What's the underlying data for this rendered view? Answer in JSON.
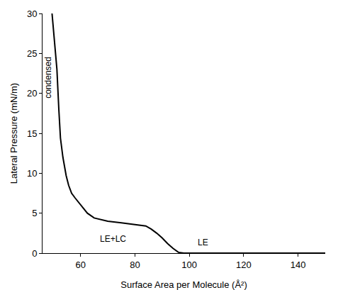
{
  "chart_data": {
    "type": "line",
    "x_label": "Surface Area per Molecule (Å²)",
    "y_label": "Lateral Pressure (mN/m)",
    "x": [
      49.5,
      50.2,
      51.3,
      52.0,
      52.6,
      53.5,
      54.7,
      55.6,
      56.7,
      58.0,
      59.5,
      61.0,
      62.5,
      65.0,
      70.0,
      75.0,
      80.0,
      84.0,
      86.0,
      88.0,
      90.0,
      92.0,
      94.0,
      96.0,
      98.0,
      100.0,
      120.0,
      150.0
    ],
    "values": [
      30.0,
      27.0,
      23.0,
      18.0,
      14.4,
      12.0,
      9.7,
      8.5,
      7.5,
      6.9,
      6.3,
      5.6,
      5.0,
      4.4,
      4.0,
      3.8,
      3.6,
      3.4,
      3.0,
      2.5,
      1.9,
      1.2,
      0.6,
      0.1,
      0.0,
      0.0,
      0.0,
      0.0
    ],
    "color": "#000000",
    "xlim": [
      46,
      150
    ],
    "ylim": [
      0,
      30
    ],
    "xticks": [
      60,
      80,
      100,
      120,
      140
    ],
    "yticks": [
      0,
      5,
      10,
      15,
      20,
      25,
      30
    ],
    "grid": false,
    "annotations": [
      "condensed",
      "LE+LC",
      "LE"
    ]
  }
}
